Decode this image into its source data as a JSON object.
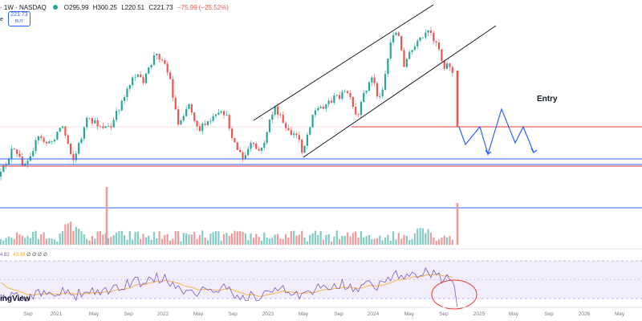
{
  "header": {
    "symbol_suffix": "· 1W · NASDAQ",
    "ohlc": {
      "open": "O295.99",
      "high": "H300.25",
      "low": "L220.51",
      "close": "C221.73",
      "change": "−75.99 (−25.52%)"
    },
    "price_box": {
      "price": "221.73",
      "action": "BUY"
    },
    "side_letter": "e"
  },
  "annotation": {
    "entry": "Entry"
  },
  "rsi_legend": {
    "value1": "4.82",
    "value2": "43.18",
    "extra": "∅ ∅ ∅ ∅"
  },
  "watermark": "ingView",
  "colors": {
    "up": "#26a69a",
    "down": "#ef5350",
    "support": "#2962ff",
    "resistance": "#e53935",
    "channel": "#131722",
    "rsi": "#7e57c2",
    "rsi_ma": "#f9a825",
    "projection": "#2962ff"
  },
  "chart_data": {
    "type": "candlestick",
    "timeframe": "1W",
    "x_axis": {
      "ticks": [
        {
          "label": "Sep",
          "t": 35
        },
        {
          "label": "2021",
          "t": 70
        },
        {
          "label": "May",
          "t": 117
        },
        {
          "label": "Sep",
          "t": 160
        },
        {
          "label": "2022",
          "t": 203
        },
        {
          "label": "May",
          "t": 247
        },
        {
          "label": "Sep",
          "t": 290
        },
        {
          "label": "2023",
          "t": 334
        },
        {
          "label": "May",
          "t": 378
        },
        {
          "label": "Sep",
          "t": 422
        },
        {
          "label": "2024",
          "t": 465
        },
        {
          "label": "May",
          "t": 510
        },
        {
          "label": "Sep",
          "t": 553
        },
        {
          "label": "2025",
          "t": 597
        },
        {
          "label": "May",
          "t": 640
        },
        {
          "label": "Sep",
          "t": 684
        },
        {
          "label": "2026",
          "t": 728
        },
        {
          "label": "May",
          "t": 772
        }
      ]
    },
    "price_path": [
      [
        0,
        220
      ],
      [
        15,
        186
      ],
      [
        30,
        205
      ],
      [
        48,
        172
      ],
      [
        62,
        180
      ],
      [
        77,
        155
      ],
      [
        92,
        200
      ],
      [
        108,
        150
      ],
      [
        122,
        155
      ],
      [
        138,
        160
      ],
      [
        150,
        130
      ],
      [
        165,
        95
      ],
      [
        180,
        100
      ],
      [
        193,
        68
      ],
      [
        203,
        72
      ],
      [
        212,
        100
      ],
      [
        222,
        155
      ],
      [
        235,
        128
      ],
      [
        248,
        162
      ],
      [
        265,
        148
      ],
      [
        280,
        140
      ],
      [
        293,
        180
      ],
      [
        303,
        200
      ],
      [
        312,
        180
      ],
      [
        325,
        190
      ],
      [
        342,
        132
      ],
      [
        358,
        165
      ],
      [
        372,
        170
      ],
      [
        377,
        190
      ],
      [
        390,
        140
      ],
      [
        405,
        130
      ],
      [
        420,
        120
      ],
      [
        433,
        115
      ],
      [
        445,
        150
      ],
      [
        455,
        112
      ],
      [
        465,
        95
      ],
      [
        472,
        128
      ],
      [
        478,
        102
      ],
      [
        483,
        75
      ],
      [
        489,
        40
      ],
      [
        496,
        42
      ],
      [
        503,
        80
      ],
      [
        512,
        65
      ],
      [
        522,
        52
      ],
      [
        535,
        40
      ],
      [
        546,
        55
      ],
      [
        552,
        82
      ],
      [
        560,
        80
      ],
      [
        565,
        95
      ],
      [
        570,
        88
      ]
    ],
    "final_candle": {
      "t": 570,
      "open": 88,
      "close": 158
    },
    "levels": [
      {
        "kind": "resistance",
        "y": 158,
        "t_from": 438,
        "t_to": 800
      },
      {
        "kind": "support",
        "y": 198,
        "t_from": 0,
        "t_to": 800
      },
      {
        "kind": "resistance",
        "y": 207,
        "t_from": 0,
        "t_to": 800
      },
      {
        "kind": "support",
        "y": 205,
        "t_from": 0,
        "t_to": 800
      }
    ],
    "channel": [
      {
        "from": [
          316,
          150
        ],
        "to": [
          540,
          6
        ]
      },
      {
        "from": [
          378,
          196
        ],
        "to": [
          618,
          32
        ]
      }
    ],
    "projection": [
      [
        572,
        158
      ],
      [
        580,
        180
      ],
      [
        598,
        158
      ],
      [
        608,
        192
      ],
      [
        625,
        136
      ],
      [
        642,
        178
      ],
      [
        652,
        158
      ],
      [
        665,
        190
      ]
    ],
    "projection_arrows": [
      [
        608,
        192
      ],
      [
        665,
        190
      ]
    ],
    "volume": {
      "baseline": 305,
      "support_line": 259,
      "spike_t": [
        133,
        570
      ]
    },
    "rsi": {
      "band_top": 325,
      "band_bottom": 372,
      "highlight_circle": {
        "t": 566,
        "y": 367,
        "rx": 28,
        "ry": 18
      }
    }
  }
}
